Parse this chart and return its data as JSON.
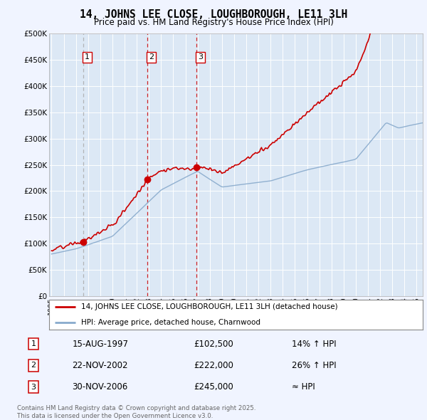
{
  "title": "14, JOHNS LEE CLOSE, LOUGHBOROUGH, LE11 3LH",
  "subtitle": "Price paid vs. HM Land Registry's House Price Index (HPI)",
  "background_color": "#f0f4ff",
  "plot_bg_color": "#dce8f5",
  "sale_label1": "14, JOHNS LEE CLOSE, LOUGHBOROUGH, LE11 3LH (detached house)",
  "sale_label2": "HPI: Average price, detached house, Charnwood",
  "footnote": "Contains HM Land Registry data © Crown copyright and database right 2025.\nThis data is licensed under the Open Government Licence v3.0.",
  "sales": [
    {
      "num": 1,
      "date": "15-AUG-1997",
      "price": 102500,
      "hpi_rel": "14% ↑ HPI",
      "year": 1997.62,
      "vline_color": "#aaaaaa"
    },
    {
      "num": 2,
      "date": "22-NOV-2002",
      "price": 222000,
      "hpi_rel": "26% ↑ HPI",
      "year": 2002.89,
      "vline_color": "#cc0000"
    },
    {
      "num": 3,
      "date": "30-NOV-2006",
      "price": 245000,
      "hpi_rel": "≈ HPI",
      "year": 2006.92,
      "vline_color": "#cc0000"
    }
  ],
  "ylim": [
    0,
    500000
  ],
  "xlim": [
    1994.8,
    2025.5
  ],
  "red_color": "#cc0000",
  "blue_color": "#88aacc",
  "grid_color": "#ffffff"
}
